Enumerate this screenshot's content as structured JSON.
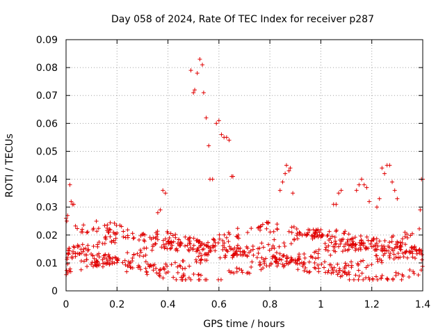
{
  "chart_data": {
    "type": "scatter",
    "title": "Day 058 of 2024, Rate Of TEC Index for receiver p287",
    "xlabel": "GPS time / hours",
    "ylabel": "ROTI / TECUs",
    "xlim": [
      0,
      1.4
    ],
    "ylim": [
      0,
      0.09
    ],
    "grid": true,
    "marker": "plus",
    "color": "#e00000",
    "x_ticks": [
      0,
      0.2,
      0.4,
      0.6,
      0.8,
      1,
      1.2,
      1.4
    ],
    "x_tick_labels": [
      "0",
      "0.2",
      "0.4",
      "0.6",
      "0.8",
      "1",
      "1.2",
      "1.4"
    ],
    "y_ticks": [
      0,
      0.01,
      0.02,
      0.03,
      0.04,
      0.05,
      0.06,
      0.07,
      0.08,
      0.09
    ],
    "y_tick_labels": [
      "0",
      "0.01",
      "0.02",
      "0.03",
      "0.04",
      "0.05",
      "0.06",
      "0.07",
      "0.08",
      "0.09"
    ],
    "series": [
      {
        "name": "ROTI",
        "points": [
          [
            0.0,
            0.026
          ],
          [
            0.003,
            0.025
          ],
          [
            0.006,
            0.027
          ],
          [
            0.015,
            0.038
          ],
          [
            0.02,
            0.032
          ],
          [
            0.025,
            0.031
          ],
          [
            0.03,
            0.031
          ],
          [
            0.38,
            0.036
          ],
          [
            0.39,
            0.035
          ],
          [
            0.37,
            0.029
          ],
          [
            0.36,
            0.028
          ],
          [
            0.49,
            0.079
          ],
          [
            0.5,
            0.071
          ],
          [
            0.505,
            0.072
          ],
          [
            0.515,
            0.078
          ],
          [
            0.525,
            0.083
          ],
          [
            0.535,
            0.081
          ],
          [
            0.54,
            0.071
          ],
          [
            0.55,
            0.062
          ],
          [
            0.56,
            0.052
          ],
          [
            0.565,
            0.04
          ],
          [
            0.575,
            0.04
          ],
          [
            0.59,
            0.06
          ],
          [
            0.6,
            0.061
          ],
          [
            0.61,
            0.056
          ],
          [
            0.62,
            0.055
          ],
          [
            0.63,
            0.055
          ],
          [
            0.64,
            0.054
          ],
          [
            0.65,
            0.041
          ],
          [
            0.655,
            0.041
          ],
          [
            0.84,
            0.036
          ],
          [
            0.85,
            0.039
          ],
          [
            0.86,
            0.042
          ],
          [
            0.865,
            0.045
          ],
          [
            0.875,
            0.043
          ],
          [
            0.88,
            0.044
          ],
          [
            0.89,
            0.035
          ],
          [
            1.05,
            0.031
          ],
          [
            1.06,
            0.031
          ],
          [
            1.07,
            0.035
          ],
          [
            1.08,
            0.036
          ],
          [
            1.14,
            0.036
          ],
          [
            1.15,
            0.038
          ],
          [
            1.16,
            0.04
          ],
          [
            1.17,
            0.038
          ],
          [
            1.18,
            0.037
          ],
          [
            1.19,
            0.032
          ],
          [
            1.22,
            0.03
          ],
          [
            1.23,
            0.033
          ],
          [
            1.24,
            0.044
          ],
          [
            1.25,
            0.042
          ],
          [
            1.26,
            0.045
          ],
          [
            1.27,
            0.045
          ],
          [
            1.28,
            0.039
          ],
          [
            1.29,
            0.036
          ],
          [
            1.3,
            0.033
          ],
          [
            1.39,
            0.029
          ],
          [
            1.395,
            0.04
          ],
          [
            1.4,
            0.04
          ]
        ]
      }
    ],
    "band": {
      "description": "dense band of points between approx. 0.004 and 0.025 TECUs across the full time range",
      "x_range": [
        0,
        1.4
      ],
      "y_range": [
        0.004,
        0.025
      ],
      "count": 900
    }
  }
}
